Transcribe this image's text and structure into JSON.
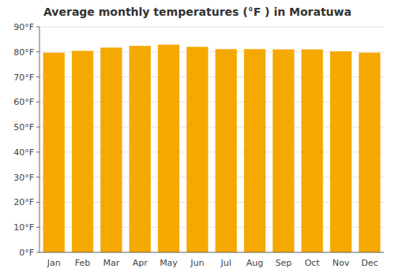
{
  "chart_data": {
    "type": "bar",
    "title": "Average monthly temperatures (°F ) in Moratuwa",
    "categories": [
      "Jan",
      "Feb",
      "Mar",
      "Apr",
      "May",
      "Jun",
      "Jul",
      "Aug",
      "Sep",
      "Oct",
      "Nov",
      "Dec"
    ],
    "values": [
      79.7,
      80.4,
      81.7,
      82.4,
      82.9,
      82.0,
      81.1,
      81.1,
      81.0,
      81.0,
      80.2,
      79.7
    ],
    "color": "#F5A800",
    "ylim": [
      0,
      90
    ],
    "yticks": [
      {
        "value": 0,
        "label": "0°F"
      },
      {
        "value": 10,
        "label": "10°F"
      },
      {
        "value": 20,
        "label": "20°F"
      },
      {
        "value": 30,
        "label": "30°F"
      },
      {
        "value": 40,
        "label": "40°F"
      },
      {
        "value": 50,
        "label": "50°F"
      },
      {
        "value": 60,
        "label": "60°F"
      },
      {
        "value": 70,
        "label": "70°F"
      },
      {
        "value": 80,
        "label": "80°F"
      },
      {
        "value": 90,
        "label": "90°F"
      }
    ],
    "grid": true
  }
}
